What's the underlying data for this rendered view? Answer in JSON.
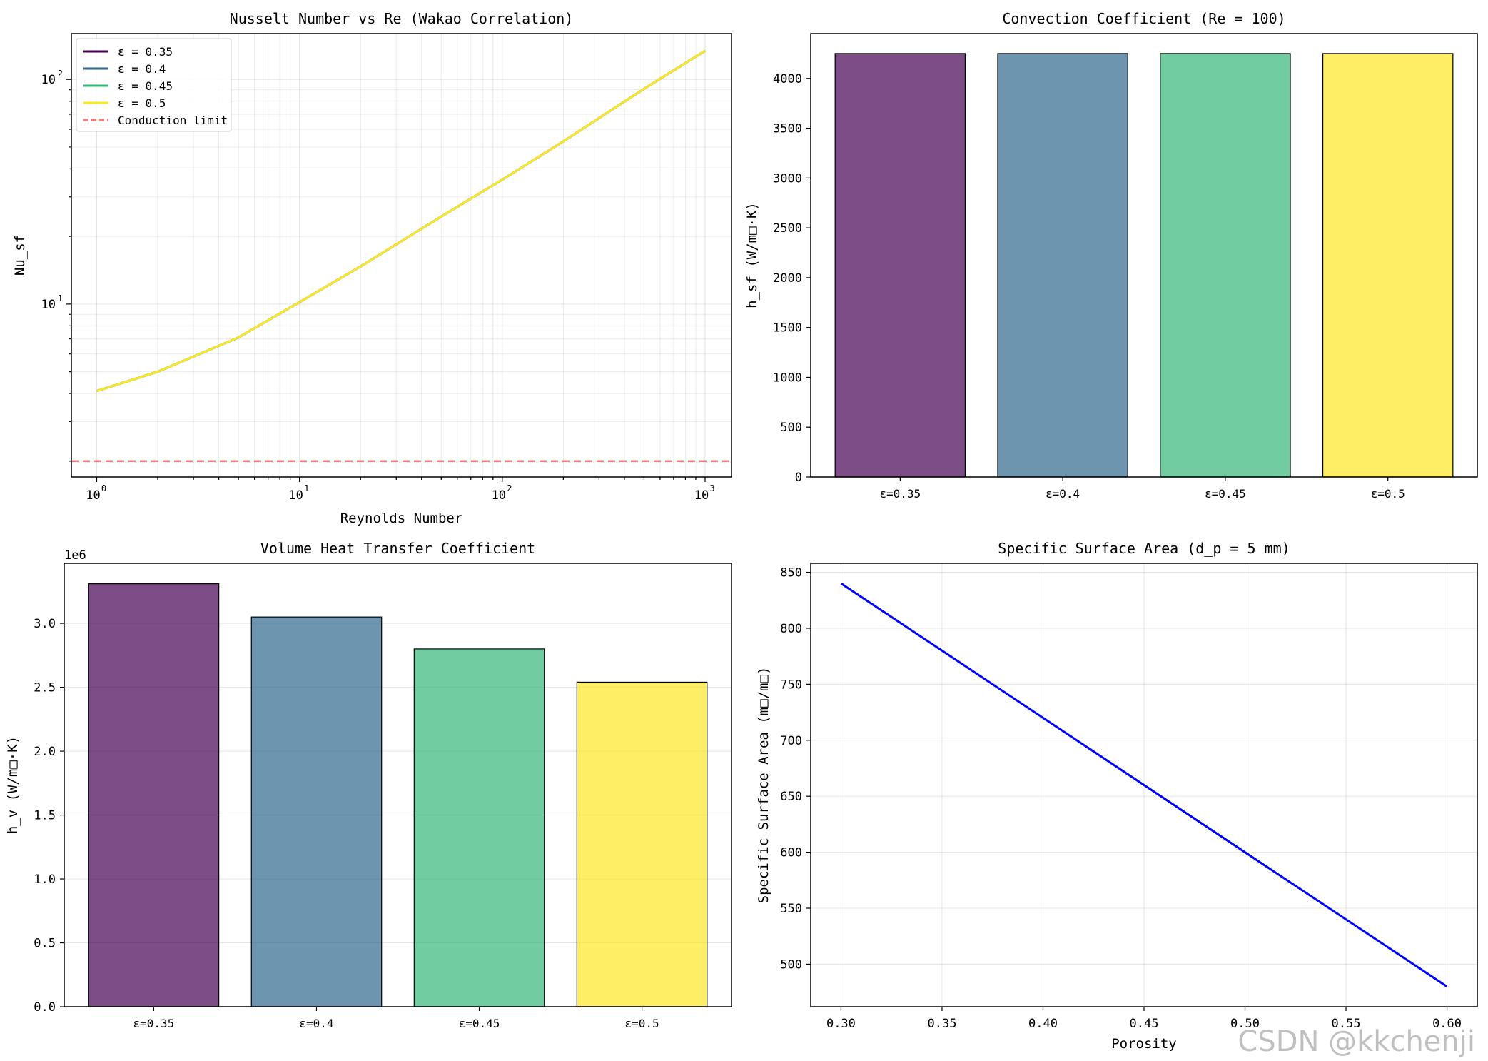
{
  "watermark": "CSDN @kkchenji",
  "chart_data": [
    {
      "type": "line",
      "title": "Nusselt Number vs Re (Wakao Correlation)",
      "xlabel": "Reynolds Number",
      "ylabel": "Nu_sf",
      "xscale": "log",
      "yscale": "log",
      "xlim": [
        0.75,
        1350
      ],
      "ylim": [
        1.7,
        160
      ],
      "xticks": [
        {
          "value": 1,
          "base": "10",
          "exp": "0"
        },
        {
          "value": 10,
          "base": "10",
          "exp": "1"
        },
        {
          "value": 100,
          "base": "10",
          "exp": "2"
        },
        {
          "value": 1000,
          "base": "10",
          "exp": "3"
        }
      ],
      "yticks": [
        {
          "value": 10,
          "base": "10",
          "exp": "1"
        },
        {
          "value": 100,
          "base": "10",
          "exp": "2"
        }
      ],
      "grid": true,
      "legend_position": "top-left",
      "series": [
        {
          "name": "ε = 0.35",
          "color": "#440154",
          "style": "solid",
          "x": [
            1,
            2,
            5,
            10,
            20,
            50,
            100,
            200,
            500,
            1000
          ],
          "y": [
            4.1,
            5.0,
            7.1,
            10.2,
            14.7,
            24.5,
            35.8,
            53.0,
            90.8,
            134.0
          ]
        },
        {
          "name": "ε = 0.4",
          "color": "#31688e",
          "style": "solid",
          "x": [
            1,
            2,
            5,
            10,
            20,
            50,
            100,
            200,
            500,
            1000
          ],
          "y": [
            4.1,
            5.0,
            7.1,
            10.2,
            14.7,
            24.5,
            35.8,
            53.0,
            90.8,
            134.0
          ]
        },
        {
          "name": "ε = 0.45",
          "color": "#35b779",
          "style": "solid",
          "x": [
            1,
            2,
            5,
            10,
            20,
            50,
            100,
            200,
            500,
            1000
          ],
          "y": [
            4.1,
            5.0,
            7.1,
            10.2,
            14.7,
            24.5,
            35.8,
            53.0,
            90.8,
            134.0
          ]
        },
        {
          "name": "ε = 0.5",
          "color": "#fde725",
          "style": "solid",
          "x": [
            1,
            2,
            5,
            10,
            20,
            50,
            100,
            200,
            500,
            1000
          ],
          "y": [
            4.1,
            5.0,
            7.1,
            10.2,
            14.7,
            24.5,
            35.8,
            53.0,
            90.8,
            134.0
          ]
        },
        {
          "name": "Conduction limit",
          "color": "#ff0000",
          "style": "dashed",
          "x": [
            0.75,
            1350
          ],
          "y": [
            2,
            2
          ]
        }
      ]
    },
    {
      "type": "bar",
      "title": "Convection Coefficient (Re = 100)",
      "xlabel": "",
      "ylabel": "h_sf (W/m□·K)",
      "categories": [
        "ε=0.35",
        "ε=0.4",
        "ε=0.45",
        "ε=0.5"
      ],
      "values": [
        4250,
        4250,
        4250,
        4250
      ],
      "colors": [
        "#440154",
        "#31688e",
        "#35b779",
        "#fde725"
      ],
      "ylim": [
        0,
        4450
      ],
      "yticks": [
        "0",
        "500",
        "1000",
        "1500",
        "2000",
        "2500",
        "3000",
        "3500",
        "4000"
      ],
      "grid": false
    },
    {
      "type": "bar",
      "title": "Volume Heat Transfer Coefficient",
      "xlabel": "",
      "ylabel": "h_v (W/m□·K)",
      "offset_text": "1e6",
      "categories": [
        "ε=0.35",
        "ε=0.4",
        "ε=0.45",
        "ε=0.5"
      ],
      "values": [
        3.31,
        3.05,
        2.8,
        2.54
      ],
      "colors": [
        "#440154",
        "#31688e",
        "#35b779",
        "#fde725"
      ],
      "ylim": [
        0,
        3.47
      ],
      "yticks": [
        "0.0",
        "0.5",
        "1.0",
        "1.5",
        "2.0",
        "2.5",
        "3.0"
      ],
      "grid": true
    },
    {
      "type": "line",
      "title": "Specific Surface Area (d_p = 5 mm)",
      "xlabel": "Porosity",
      "ylabel": "Specific Surface Area (m□/m□)",
      "xlim": [
        0.285,
        0.615
      ],
      "ylim": [
        462,
        858
      ],
      "xticks": [
        "0.30",
        "0.35",
        "0.40",
        "0.45",
        "0.50",
        "0.55",
        "0.60"
      ],
      "yticks": [
        "500",
        "550",
        "600",
        "650",
        "700",
        "750",
        "800",
        "850"
      ],
      "grid": true,
      "series": [
        {
          "color": "#0000ff",
          "x": [
            0.3,
            0.6
          ],
          "y": [
            840,
            480
          ]
        }
      ]
    }
  ]
}
